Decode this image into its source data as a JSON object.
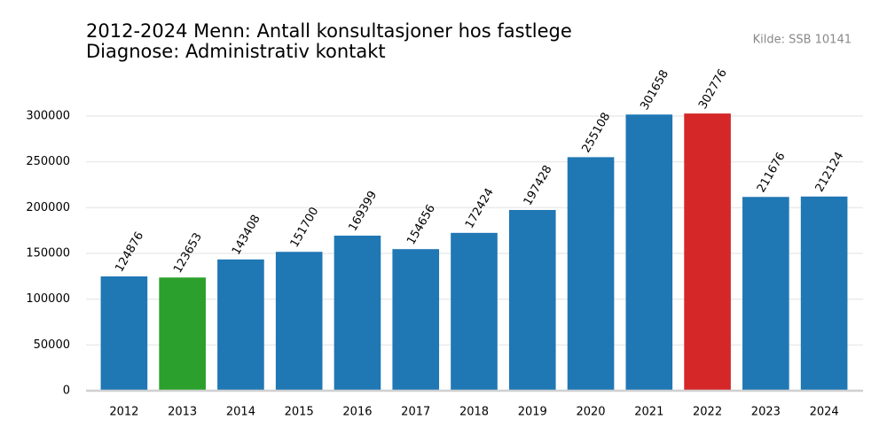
{
  "chart_data": {
    "type": "bar",
    "title": "2012-2024 Menn: Antall konsultasjoner hos fastlege",
    "subtitle": "Diagnose: Administrativ kontakt",
    "source": "Kilde: SSB 10141",
    "categories": [
      "2012",
      "2013",
      "2014",
      "2015",
      "2016",
      "2017",
      "2018",
      "2019",
      "2020",
      "2021",
      "2022",
      "2023",
      "2024"
    ],
    "values": [
      124876,
      123653,
      143408,
      151700,
      169399,
      154656,
      172424,
      197428,
      255108,
      301658,
      302776,
      211676,
      212124
    ],
    "colors": [
      "#1f77b4",
      "#2ca02c",
      "#1f77b4",
      "#1f77b4",
      "#1f77b4",
      "#1f77b4",
      "#1f77b4",
      "#1f77b4",
      "#1f77b4",
      "#1f77b4",
      "#d62728",
      "#1f77b4",
      "#1f77b4"
    ],
    "ylim": [
      0,
      330000
    ],
    "yticks": [
      0,
      50000,
      100000,
      150000,
      200000,
      250000,
      300000
    ],
    "grid": true
  }
}
